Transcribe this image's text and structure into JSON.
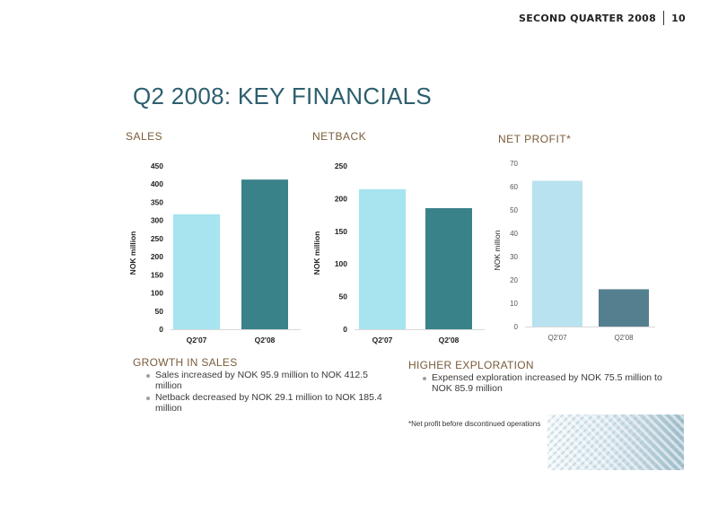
{
  "header": {
    "section": "SECOND QUARTER 2008",
    "page": "10"
  },
  "title": "Q2 2008: KEY FINANCIALS",
  "chart_data": [
    {
      "type": "bar",
      "title": "SALES",
      "ylabel": "NOK million",
      "categories": [
        "Q2'07",
        "Q2'08"
      ],
      "values": [
        317,
        412.5
      ],
      "ylim": [
        0,
        450
      ],
      "yticks": [
        0,
        50,
        100,
        150,
        200,
        250,
        300,
        350,
        400,
        450
      ],
      "colors": [
        "#a6e4f0",
        "#3a8289"
      ]
    },
    {
      "type": "bar",
      "title": "NETBACK",
      "ylabel": "NOK million",
      "categories": [
        "Q2'07",
        "Q2'08"
      ],
      "values": [
        214.5,
        185.4
      ],
      "ylim": [
        0,
        250
      ],
      "yticks": [
        0,
        50,
        100,
        150,
        200,
        250
      ],
      "colors": [
        "#a6e4f0",
        "#3a8289"
      ]
    },
    {
      "type": "bar",
      "title": "NET PROFIT*",
      "ylabel": "NOK million",
      "categories": [
        "Q2'07",
        "Q2'08"
      ],
      "values": [
        62.5,
        16
      ],
      "ylim": [
        0,
        70
      ],
      "yticks": [
        0,
        10,
        20,
        30,
        40,
        50,
        60,
        70
      ],
      "colors": [
        "#b8e2f0",
        "#547f8e"
      ]
    }
  ],
  "growth": {
    "heading": "GROWTH IN SALES",
    "bullets": [
      "Sales increased by NOK 95.9 million to NOK 412.5 million",
      "Netback decreased by NOK 29.1 million to NOK 185.4 million"
    ]
  },
  "exploration": {
    "heading": "HIGHER EXPLORATION",
    "bullets": [
      "Expensed exploration increased by NOK 75.5 million to NOK 85.9 million"
    ]
  },
  "footnote": "*Net profit before discontinued operations"
}
